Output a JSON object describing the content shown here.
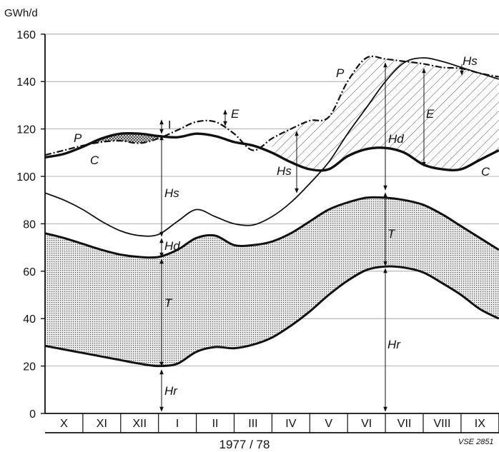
{
  "chart_data": {
    "type": "area",
    "ylabel": "GWh/d",
    "xlabel": "1977 / 78",
    "ylim": [
      0,
      160
    ],
    "yticks": [
      0,
      20,
      40,
      60,
      80,
      100,
      120,
      140,
      160
    ],
    "grid": true,
    "months": [
      "X",
      "XI",
      "XII",
      "I",
      "II",
      "III",
      "IV",
      "V",
      "VI",
      "VII",
      "VIII",
      "IX"
    ],
    "x": [
      0,
      0.5,
      1,
      1.5,
      2,
      2.5,
      3,
      3.5,
      4,
      4.5,
      5,
      5.5,
      6,
      6.5,
      7,
      7.5,
      8,
      8.5,
      9,
      9.5,
      10,
      10.5,
      11,
      11.5,
      12
    ],
    "series": [
      {
        "name": "Hr",
        "values": [
          28.5,
          27,
          25.5,
          24,
          22.5,
          21,
          20,
          21,
          26,
          28,
          27.5,
          29,
          32,
          37,
          43,
          50,
          56,
          60.5,
          62,
          61.5,
          59.5,
          55,
          50,
          44,
          40
        ]
      },
      {
        "name": "T",
        "values": [
          76,
          74,
          71.5,
          69,
          67,
          66,
          66,
          69,
          74,
          75,
          71,
          71,
          72.5,
          76,
          81,
          86,
          89,
          91,
          91,
          90,
          88,
          84,
          79,
          74,
          69
        ]
      },
      {
        "name": "Hd",
        "values": [
          93,
          90,
          86,
          81,
          77,
          75,
          75.5,
          81,
          86,
          83,
          80,
          79.5,
          83,
          89,
          97,
          106,
          118,
          129,
          140,
          148,
          150,
          148.5,
          146,
          143.5,
          141
        ]
      },
      {
        "name": "C",
        "values": [
          108,
          109.5,
          112.5,
          116,
          118,
          118,
          117,
          116.5,
          118,
          117,
          114.5,
          113,
          110,
          106,
          103,
          103,
          108.5,
          111.5,
          112,
          110,
          105,
          103,
          103,
          107,
          111
        ]
      },
      {
        "name": "P",
        "values": [
          109,
          111,
          113,
          114.5,
          115,
          114,
          116,
          119.5,
          123,
          123,
          118,
          111,
          116,
          120,
          123.5,
          125,
          140,
          150,
          149.5,
          148.5,
          147.5,
          146,
          145.5,
          143.5,
          142
        ]
      }
    ],
    "annotations": [
      "P",
      "C",
      "I",
      "E",
      "Hs",
      "Hd",
      "T",
      "Hr",
      "P",
      "Hd",
      "E",
      "Hs",
      "C",
      "Hs",
      "T",
      "Hr"
    ],
    "credit": "VSE 2851"
  },
  "colors": {
    "stroke": "#111111",
    "grid": "#9a9a9a",
    "storage_fill": "#cfcfcf",
    "hatch": "#555555"
  }
}
